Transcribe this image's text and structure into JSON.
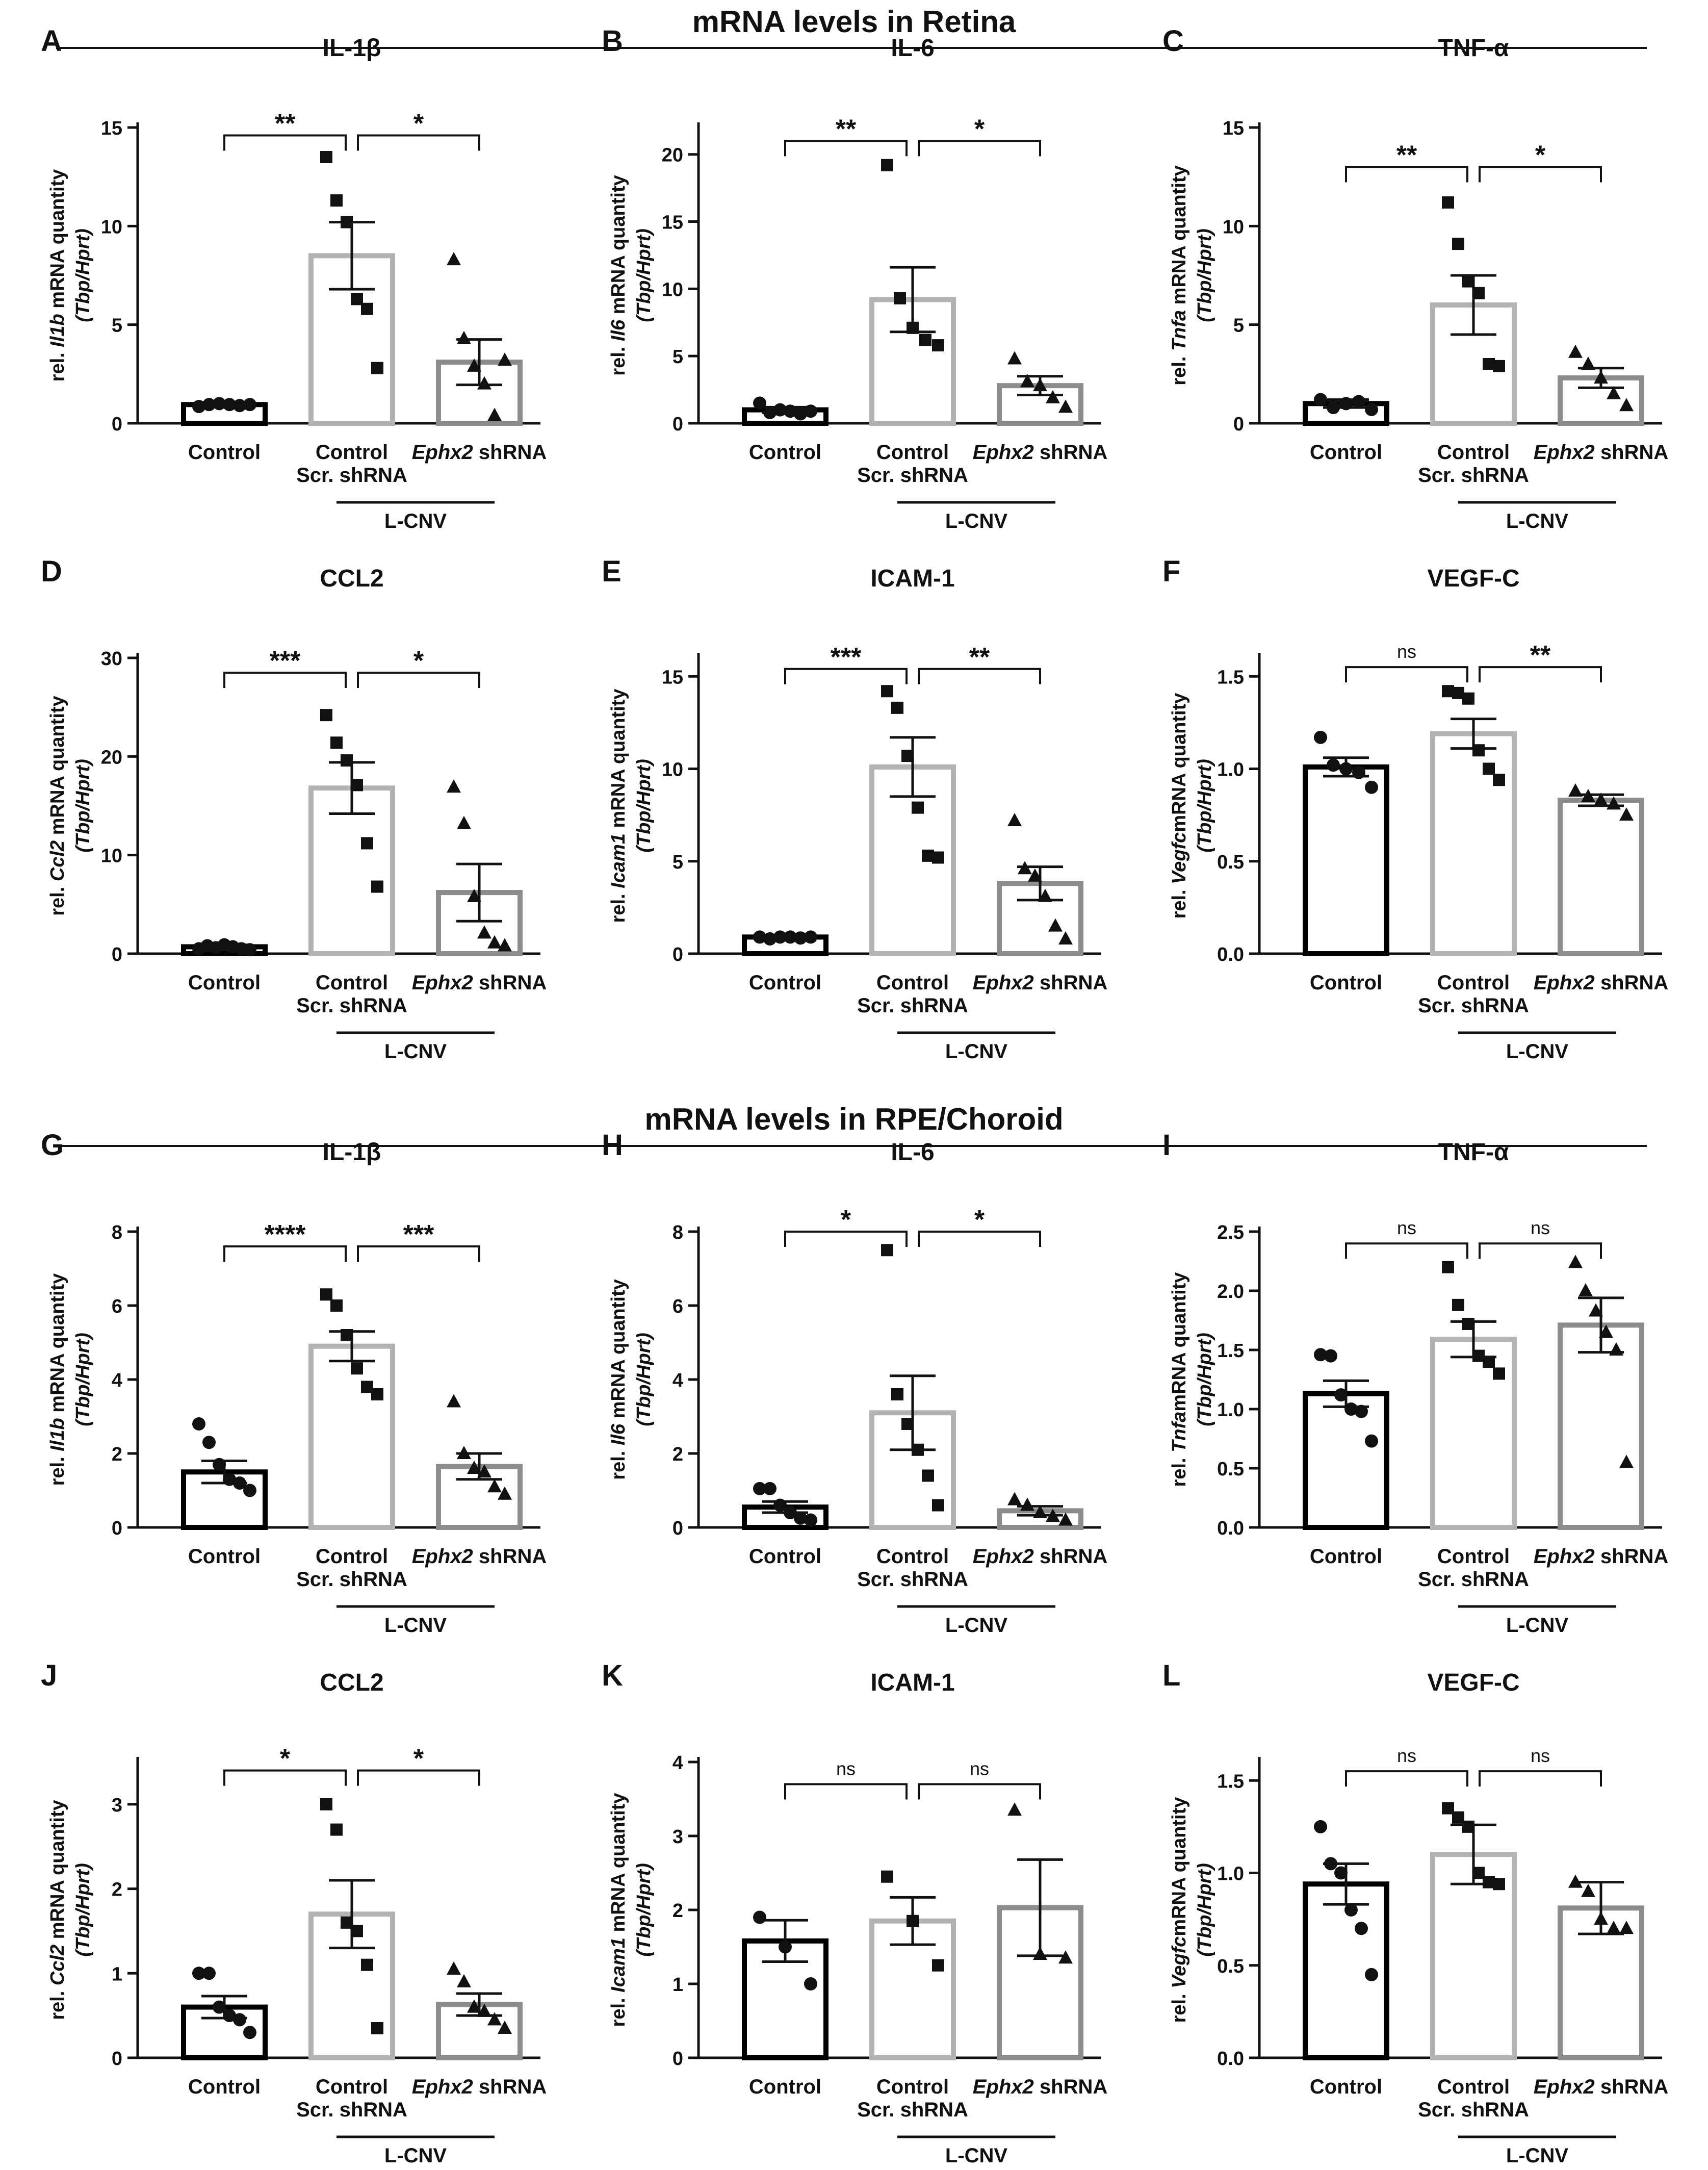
{
  "sections": [
    {
      "title": "mRNA levels in Retina"
    },
    {
      "title": "mRNA levels in RPE/Choroid"
    }
  ],
  "colors": {
    "control": "#000000",
    "scr": "#b3b3b3",
    "ephx2": "#8c8c8c"
  },
  "chart_data": [
    {
      "type": "bar",
      "panel": "A",
      "title": "IL-1β",
      "ylabel": {
        "line1": [
          "rel. ",
          "Il1b",
          " mRNA quantity"
        ],
        "line2": "(Tbp/Hprt)"
      },
      "categories": [
        "Control",
        "Control",
        "Ephx2 shRNA"
      ],
      "sublabel": "Scr. shRNA",
      "group_label": "L-CNV",
      "ylim": [
        0,
        15
      ],
      "yticks": [
        0,
        5,
        10,
        15
      ],
      "tick_labels": [
        "0",
        "5",
        "10",
        "15"
      ],
      "means": [
        0.95,
        8.5,
        3.1
      ],
      "sem": [
        0.1,
        1.7,
        1.15
      ],
      "points": [
        [
          0.85,
          0.95,
          1.0,
          0.95,
          0.9,
          0.95
        ],
        [
          13.5,
          11.3,
          10.2,
          6.3,
          5.8,
          2.8
        ],
        [
          8.3,
          4.3,
          2.9,
          2.0,
          0.4,
          3.2
        ]
      ],
      "markers": [
        "circle",
        "square",
        "triangle"
      ],
      "brackets": [
        {
          "from": 0,
          "to": 1,
          "label": "**",
          "y": 14.6
        },
        {
          "from": 1,
          "to": 2,
          "label": "*",
          "y": 14.6
        }
      ]
    },
    {
      "type": "bar",
      "panel": "B",
      "title": "IL-6",
      "ylabel": {
        "line1": [
          "rel. ",
          "Il6",
          " mRNA quantity"
        ],
        "line2": "(Tbp/Hprt)"
      },
      "categories": [
        "Control",
        "Control",
        "Ephx2 shRNA"
      ],
      "sublabel": "Scr. shRNA",
      "group_label": "L-CNV",
      "ylim": [
        0,
        22
      ],
      "yticks": [
        0,
        5,
        10,
        15,
        20
      ],
      "tick_labels": [
        "0",
        "5",
        "10",
        "15",
        "20"
      ],
      "means": [
        1.0,
        9.2,
        2.8
      ],
      "sem": [
        0.2,
        2.4,
        0.7
      ],
      "points": [
        [
          1.5,
          0.8,
          1.0,
          0.9,
          0.7,
          0.9
        ],
        [
          19.2,
          9.3,
          7.1,
          6.2,
          5.8
        ],
        [
          4.8,
          3.1,
          2.8,
          1.9,
          1.2
        ]
      ],
      "markers": [
        "circle",
        "square",
        "triangle"
      ],
      "brackets": [
        {
          "from": 0,
          "to": 1,
          "label": "**",
          "y": 21.0
        },
        {
          "from": 1,
          "to": 2,
          "label": "*",
          "y": 21.0
        }
      ]
    },
    {
      "type": "bar",
      "panel": "C",
      "title": "TNF-α",
      "ylabel": {
        "line1": [
          "rel. ",
          "Tnfa",
          " mRNA quantity"
        ],
        "line2": "(Tbp/Hprt)"
      },
      "categories": [
        "Control",
        "Control",
        "Ephx2 shRNA"
      ],
      "sublabel": "Scr. shRNA",
      "group_label": "L-CNV",
      "ylim": [
        0,
        15
      ],
      "yticks": [
        0,
        5,
        10,
        15
      ],
      "tick_labels": [
        "0",
        "5",
        "10",
        "15"
      ],
      "means": [
        1.0,
        6.0,
        2.3
      ],
      "sem": [
        0.2,
        1.5,
        0.5
      ],
      "points": [
        [
          1.2,
          0.8,
          1.0,
          1.1,
          0.7
        ],
        [
          11.2,
          9.1,
          7.2,
          6.6,
          3.0,
          2.9
        ],
        [
          3.6,
          3.0,
          2.3,
          1.5,
          0.9
        ]
      ],
      "markers": [
        "circle",
        "square",
        "triangle"
      ],
      "brackets": [
        {
          "from": 0,
          "to": 1,
          "label": "**",
          "y": 13.0
        },
        {
          "from": 1,
          "to": 2,
          "label": "*",
          "y": 13.0
        }
      ]
    },
    {
      "type": "bar",
      "panel": "D",
      "title": "CCL2",
      "ylabel": {
        "line1": [
          "rel. ",
          "Ccl2",
          " mRNA quantity"
        ],
        "line2": "(Tbp/Hprt)"
      },
      "categories": [
        "Control",
        "Control",
        "Ephx2 shRNA"
      ],
      "sublabel": "Scr. shRNA",
      "group_label": "L-CNV",
      "ylim": [
        0,
        30
      ],
      "yticks": [
        0,
        10,
        20,
        30
      ],
      "tick_labels": [
        "0",
        "10",
        "20",
        "30"
      ],
      "means": [
        0.7,
        16.8,
        6.2
      ],
      "sem": [
        0.2,
        2.6,
        2.9
      ],
      "points": [
        [
          0.5,
          0.8,
          0.6,
          0.9,
          0.7,
          0.5,
          0.4
        ],
        [
          24.2,
          21.4,
          19.6,
          17.1,
          11.2,
          6.8
        ],
        [
          16.9,
          13.2,
          5.8,
          2.1,
          1.1,
          0.8
        ]
      ],
      "markers": [
        "circle",
        "square",
        "triangle"
      ],
      "brackets": [
        {
          "from": 0,
          "to": 1,
          "label": "***",
          "y": 28.5
        },
        {
          "from": 1,
          "to": 2,
          "label": "*",
          "y": 28.5
        }
      ]
    },
    {
      "type": "bar",
      "panel": "E",
      "title": "ICAM-1",
      "ylabel": {
        "line1": [
          "rel. ",
          "Icam1",
          " mRNA quantity"
        ],
        "line2": "(Tbp/Hprt)"
      },
      "categories": [
        "Control",
        "Control",
        "Ephx2 shRNA"
      ],
      "sublabel": "Scr. shRNA",
      "group_label": "L-CNV",
      "ylim": [
        0,
        16
      ],
      "yticks": [
        0,
        5,
        10,
        15
      ],
      "tick_labels": [
        "0",
        "5",
        "10",
        "15"
      ],
      "means": [
        0.9,
        10.1,
        3.8
      ],
      "sem": [
        0.1,
        1.6,
        0.9
      ],
      "points": [
        [
          0.9,
          0.8,
          0.9,
          0.9,
          0.85,
          0.9
        ],
        [
          14.2,
          13.3,
          10.7,
          7.9,
          5.3,
          5.2
        ],
        [
          7.2,
          4.6,
          4.2,
          3.1,
          1.5,
          0.8
        ]
      ],
      "markers": [
        "circle",
        "square",
        "triangle"
      ],
      "brackets": [
        {
          "from": 0,
          "to": 1,
          "label": "***",
          "y": 15.4
        },
        {
          "from": 1,
          "to": 2,
          "label": "**",
          "y": 15.4
        }
      ]
    },
    {
      "type": "bar",
      "panel": "F",
      "title": "VEGF-C",
      "ylabel": {
        "line1": [
          "rel. ",
          "Vegfc",
          "mRNA quantity"
        ],
        "line2": "(Tbp/Hprt)"
      },
      "categories": [
        "Control",
        "Control",
        "Ephx2 shRNA"
      ],
      "sublabel": "Scr. shRNA",
      "group_label": "L-CNV",
      "ylim": [
        0,
        1.6
      ],
      "yticks": [
        0,
        0.5,
        1.0,
        1.5
      ],
      "tick_labels": [
        "0.0",
        "0.5",
        "1.0",
        "1.5"
      ],
      "means": [
        1.01,
        1.19,
        0.83
      ],
      "sem": [
        0.05,
        0.08,
        0.03
      ],
      "points": [
        [
          1.17,
          1.02,
          1.0,
          0.98,
          0.9
        ],
        [
          1.42,
          1.41,
          1.38,
          1.1,
          1.0,
          0.94
        ],
        [
          0.88,
          0.85,
          0.83,
          0.81,
          0.75
        ]
      ],
      "markers": [
        "circle",
        "square",
        "triangle"
      ],
      "brackets": [
        {
          "from": 0,
          "to": 1,
          "label": "ns",
          "y": 1.55
        },
        {
          "from": 1,
          "to": 2,
          "label": "**",
          "y": 1.55
        }
      ]
    },
    {
      "type": "bar",
      "panel": "G",
      "title": "IL-1β",
      "ylabel": {
        "line1": [
          "rel. ",
          "Il1b",
          " mRNA quantity"
        ],
        "line2": "(Tbp/Hprt)"
      },
      "categories": [
        "Control",
        "Control",
        "Ephx2 shRNA"
      ],
      "sublabel": "Scr. shRNA",
      "group_label": "L-CNV",
      "ylim": [
        0,
        8
      ],
      "yticks": [
        0,
        2,
        4,
        6,
        8
      ],
      "tick_labels": [
        "0",
        "2",
        "4",
        "6",
        "8"
      ],
      "means": [
        1.5,
        4.9,
        1.65
      ],
      "sem": [
        0.3,
        0.4,
        0.35
      ],
      "points": [
        [
          2.8,
          2.3,
          1.7,
          1.3,
          1.2,
          1.0
        ],
        [
          6.3,
          6.0,
          5.2,
          4.3,
          3.8,
          3.6
        ],
        [
          3.4,
          2.0,
          1.6,
          1.5,
          1.1,
          0.9
        ]
      ],
      "markers": [
        "circle",
        "square",
        "triangle"
      ],
      "brackets": [
        {
          "from": 0,
          "to": 1,
          "label": "****",
          "y": 7.6
        },
        {
          "from": 1,
          "to": 2,
          "label": "***",
          "y": 7.6
        }
      ]
    },
    {
      "type": "bar",
      "panel": "H",
      "title": "IL-6",
      "ylabel": {
        "line1": [
          "rel. ",
          "Il6",
          " mRNA quantity"
        ],
        "line2": "(Tbp/Hprt)"
      },
      "categories": [
        "Control",
        "Control",
        "Ephx2 shRNA"
      ],
      "sublabel": "Scr. shRNA",
      "group_label": "L-CNV",
      "ylim": [
        0,
        8
      ],
      "yticks": [
        0,
        2,
        4,
        6,
        8
      ],
      "tick_labels": [
        "0",
        "2",
        "4",
        "6",
        "8"
      ],
      "means": [
        0.55,
        3.1,
        0.45
      ],
      "sem": [
        0.15,
        1.0,
        0.12
      ],
      "points": [
        [
          1.05,
          1.05,
          0.6,
          0.4,
          0.25,
          0.2
        ],
        [
          7.5,
          3.6,
          2.8,
          2.1,
          1.4,
          0.6
        ],
        [
          0.75,
          0.6,
          0.4,
          0.3,
          0.2
        ]
      ],
      "markers": [
        "circle",
        "square",
        "triangle"
      ],
      "brackets": [
        {
          "from": 0,
          "to": 1,
          "label": "*",
          "y": 8.0
        },
        {
          "from": 1,
          "to": 2,
          "label": "*",
          "y": 8.0
        }
      ]
    },
    {
      "type": "bar",
      "panel": "I",
      "title": "TNF-α",
      "ylabel": {
        "line1": [
          "rel. ",
          "Tnfa",
          "mRNA quantity"
        ],
        "line2": "(Tbp/Hprt)"
      },
      "categories": [
        "Control",
        "Control",
        "Ephx2 shRNA"
      ],
      "sublabel": "Scr. shRNA",
      "group_label": "L-CNV",
      "ylim": [
        0,
        2.5
      ],
      "yticks": [
        0,
        0.5,
        1.0,
        1.5,
        2.0,
        2.5
      ],
      "tick_labels": [
        "0.0",
        "0.5",
        "1.0",
        "1.5",
        "2.0",
        "2.5"
      ],
      "means": [
        1.13,
        1.59,
        1.71
      ],
      "sem": [
        0.11,
        0.15,
        0.23
      ],
      "points": [
        [
          1.46,
          1.45,
          1.12,
          1.0,
          0.98,
          0.73
        ],
        [
          2.2,
          1.88,
          1.72,
          1.45,
          1.4,
          1.3
        ],
        [
          2.24,
          2.0,
          1.83,
          1.65,
          1.5,
          0.55
        ]
      ],
      "markers": [
        "circle",
        "square",
        "triangle"
      ],
      "brackets": [
        {
          "from": 0,
          "to": 1,
          "label": "ns",
          "y": 2.4
        },
        {
          "from": 1,
          "to": 2,
          "label": "ns",
          "y": 2.4
        }
      ]
    },
    {
      "type": "bar",
      "panel": "J",
      "title": "CCL2",
      "ylabel": {
        "line1": [
          "rel. ",
          "Ccl2",
          " mRNA quantity"
        ],
        "line2": "(Tbp/Hprt)"
      },
      "categories": [
        "Control",
        "Control",
        "Ephx2 shRNA"
      ],
      "sublabel": "Scr. shRNA",
      "group_label": "L-CNV",
      "ylim": [
        0,
        3.5
      ],
      "yticks": [
        0,
        1,
        2,
        3
      ],
      "tick_labels": [
        "0",
        "1",
        "2",
        "3"
      ],
      "means": [
        0.6,
        1.7,
        0.63
      ],
      "sem": [
        0.13,
        0.4,
        0.13
      ],
      "points": [
        [
          1.0,
          1.0,
          0.6,
          0.5,
          0.45,
          0.3
        ],
        [
          3.0,
          2.7,
          1.6,
          1.5,
          1.1,
          0.35
        ],
        [
          1.05,
          0.9,
          0.6,
          0.55,
          0.45,
          0.35
        ]
      ],
      "markers": [
        "circle",
        "square",
        "triangle"
      ],
      "brackets": [
        {
          "from": 0,
          "to": 1,
          "label": "*",
          "y": 3.4
        },
        {
          "from": 1,
          "to": 2,
          "label": "*",
          "y": 3.4
        }
      ]
    },
    {
      "type": "bar",
      "panel": "K",
      "title": "ICAM-1",
      "ylabel": {
        "line1": [
          "rel. ",
          "Icam1",
          " mRNA quantity"
        ],
        "line2": "(Tbp/Hprt)"
      },
      "categories": [
        "Control",
        "Control",
        "Ephx2 shRNA"
      ],
      "sublabel": "Scr. shRNA",
      "group_label": "L-CNV",
      "ylim": [
        0,
        4
      ],
      "yticks": [
        0,
        1,
        2,
        3,
        4
      ],
      "tick_labels": [
        "0",
        "1",
        "2",
        "3",
        "4"
      ],
      "means": [
        1.58,
        1.85,
        2.03
      ],
      "sem": [
        0.28,
        0.32,
        0.65
      ],
      "points": [
        [
          1.9,
          1.5,
          1.0
        ],
        [
          2.45,
          1.85,
          1.25
        ],
        [
          3.35,
          1.4,
          1.35
        ]
      ],
      "markers": [
        "circle",
        "square",
        "triangle"
      ],
      "brackets": [
        {
          "from": 0,
          "to": 1,
          "label": "ns",
          "y": 3.7
        },
        {
          "from": 1,
          "to": 2,
          "label": "ns",
          "y": 3.7
        }
      ]
    },
    {
      "type": "bar",
      "panel": "L",
      "title": "VEGF-C",
      "ylabel": {
        "line1": [
          "rel. ",
          "Vegfc",
          "mRNA quantity"
        ],
        "line2": "(Tbp/Hprt)"
      },
      "categories": [
        "Control",
        "Control",
        "Ephx2 shRNA"
      ],
      "sublabel": "Scr. shRNA",
      "group_label": "L-CNV",
      "ylim": [
        0,
        1.6
      ],
      "yticks": [
        0,
        0.5,
        1.0,
        1.5
      ],
      "tick_labels": [
        "0.0",
        "0.5",
        "1.0",
        "1.5"
      ],
      "means": [
        0.94,
        1.1,
        0.81
      ],
      "sem": [
        0.11,
        0.16,
        0.14
      ],
      "points": [
        [
          1.25,
          1.05,
          1.0,
          0.8,
          0.7,
          0.45
        ],
        [
          1.35,
          1.3,
          1.25,
          1.0,
          0.95,
          0.94
        ],
        [
          0.95,
          0.9,
          0.75,
          0.7,
          0.7
        ]
      ],
      "markers": [
        "circle",
        "square",
        "triangle"
      ],
      "brackets": [
        {
          "from": 0,
          "to": 1,
          "label": "ns",
          "y": 1.55
        },
        {
          "from": 1,
          "to": 2,
          "label": "ns",
          "y": 1.55
        }
      ]
    }
  ]
}
